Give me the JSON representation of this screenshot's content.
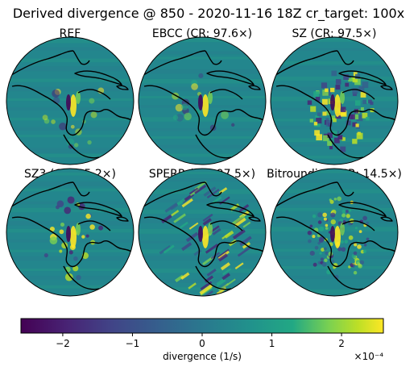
{
  "chart_data": {
    "type": "heatmap",
    "title": "Derived divergence @ 850 - 2020-11-16 18Z cr_target: 100x",
    "panels": [
      {
        "label": "REF"
      },
      {
        "label": "EBCC (CR: 97.6×)"
      },
      {
        "label": "SZ (CR: 97.5×)"
      },
      {
        "label": "SZ3 (CR: 95.2×)"
      },
      {
        "label": "SPERR (CR: 97.5×)"
      },
      {
        "label": "Bitrounding (CR: 14.5×)"
      }
    ],
    "colorbar": {
      "label": "divergence (1/s)",
      "scale_label": "×10⁻⁴",
      "range": [
        -2.6,
        2.6
      ],
      "ticks": [
        -2,
        -1,
        0,
        1,
        2
      ],
      "tick_labels": [
        "−2",
        "−1",
        "0",
        "1",
        "2"
      ],
      "colormap": "viridis"
    }
  }
}
